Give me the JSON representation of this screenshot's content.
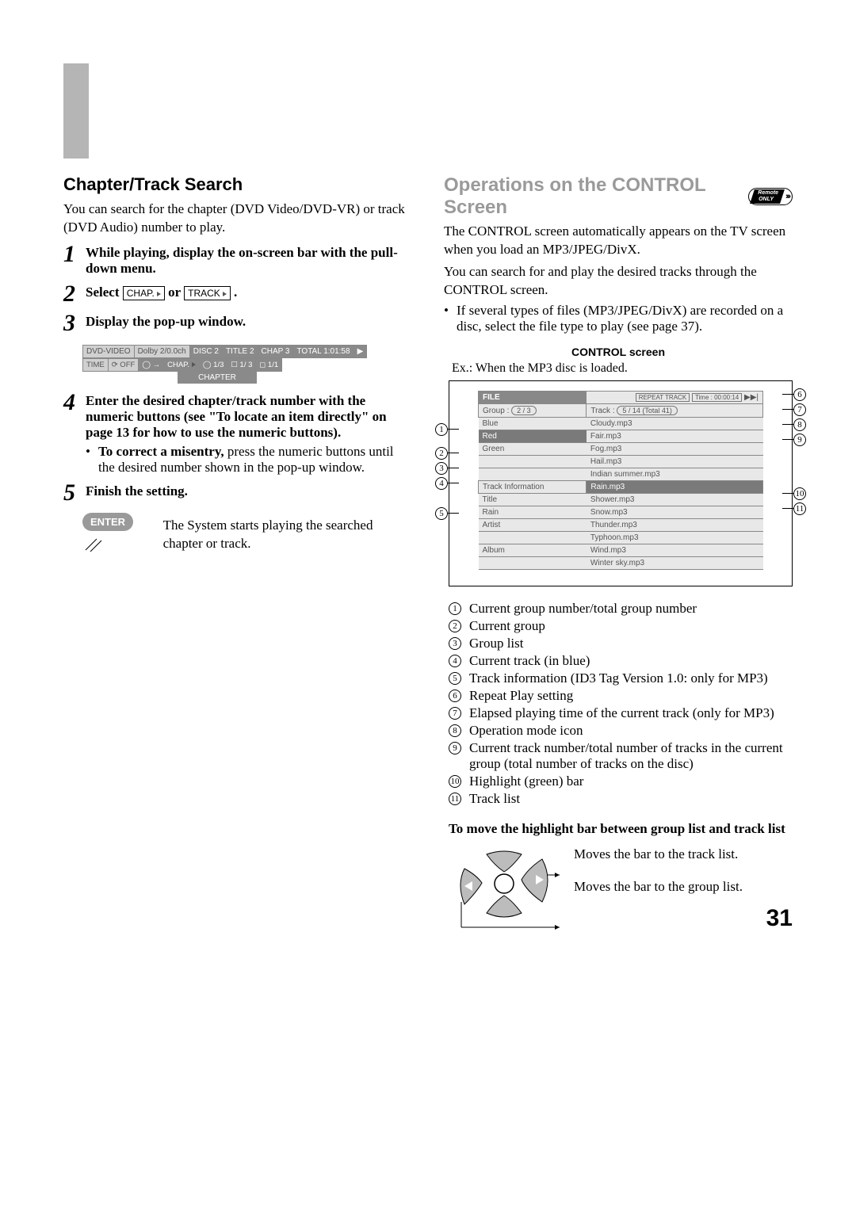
{
  "left": {
    "heading": "Chapter/Track Search",
    "intro": "You can search for the chapter (DVD Video/DVD-VR) or track (DVD Audio) number to play.",
    "step1": "While playing, display the on-screen bar with the pull-down menu.",
    "step2_pre": "Select ",
    "step2_chip1": "CHAP.",
    "step2_mid": " or ",
    "step2_chip2": "TRACK",
    "step2_end": ".",
    "step3": "Display the pop-up window.",
    "bar": {
      "row1": [
        "DVD-VIDEO",
        "Dolby 2/0.0ch",
        "DISC 2",
        "TITLE 2",
        "CHAP 3",
        "TOTAL 1:01:58"
      ],
      "row2": [
        "TIME",
        "⟳ OFF",
        "◯ →",
        "CHAP.",
        "◯ 1/3",
        "☐ 1/ 3",
        "◻ 1/1"
      ],
      "chapter": "CHAPTER"
    },
    "step4": "Enter the desired chapter/track number with the numeric buttons (see \"To locate an item directly\" on page 13 for how to use the numeric buttons).",
    "step4_sub_bold": "To correct a misentry,",
    "step4_sub_rest": " press the numeric buttons until the desired number shown in the pop-up window.",
    "step5": "Finish the setting.",
    "enter_label": "ENTER",
    "enter_text": "The System starts playing the searched chapter or track."
  },
  "right": {
    "heading": "Operations on the CONTROL Screen",
    "remote_top": "Remote",
    "remote_bot": "ONLY",
    "p1": "The CONTROL screen automatically appears on the TV screen when you load an MP3/JPEG/DivX.",
    "p2": "You can search for and play the desired tracks through the CONTROL screen.",
    "p3": "If several types of files (MP3/JPEG/DivX) are recorded on a disc, select the file type to play (see page 37).",
    "ctrl_title": "CONTROL screen",
    "ctrl_sub": "Ex.: When the MP3 disc is loaded.",
    "diagram": {
      "file": "FILE",
      "repeat": "REPEAT TRACK",
      "time": "Time : 00:00:14",
      "group_label": "Group :",
      "group_val": "2 / 3",
      "track_label": "Track :",
      "track_val": "5 / 14 (Total 41)",
      "groups": [
        "Blue",
        "Red",
        "Green"
      ],
      "trackinfo_label": "Track Information",
      "info": [
        [
          "Title",
          ""
        ],
        [
          "Rain",
          ""
        ],
        [
          "Artist",
          ""
        ],
        [
          "",
          ""
        ],
        [
          "Album",
          ""
        ]
      ],
      "tracks": [
        "Cloudy.mp3",
        "Fair.mp3",
        "Fog.mp3",
        "Hail.mp3",
        "Indian summer.mp3",
        "Rain.mp3",
        "Shower.mp3",
        "Snow.mp3",
        "Thunder.mp3",
        "Typhoon.mp3",
        "Wind.mp3",
        "Winter sky.mp3"
      ],
      "track_highlight_index": 5
    },
    "legend": [
      "Current group number/total group number",
      "Current group",
      "Group list",
      "Current track (in blue)",
      "Track information (ID3 Tag Version 1.0: only for MP3)",
      "Repeat Play setting",
      "Elapsed playing time of the current track (only for MP3)",
      "Operation mode icon",
      "Current track number/total number of tracks in the current group (total number of tracks on the disc)",
      "Highlight (green) bar",
      "Track list"
    ],
    "move_title": "To move the highlight bar between group list and track list",
    "nav1": "Moves the bar to the track list.",
    "nav2": "Moves the bar to the group list."
  },
  "page_number": "31"
}
